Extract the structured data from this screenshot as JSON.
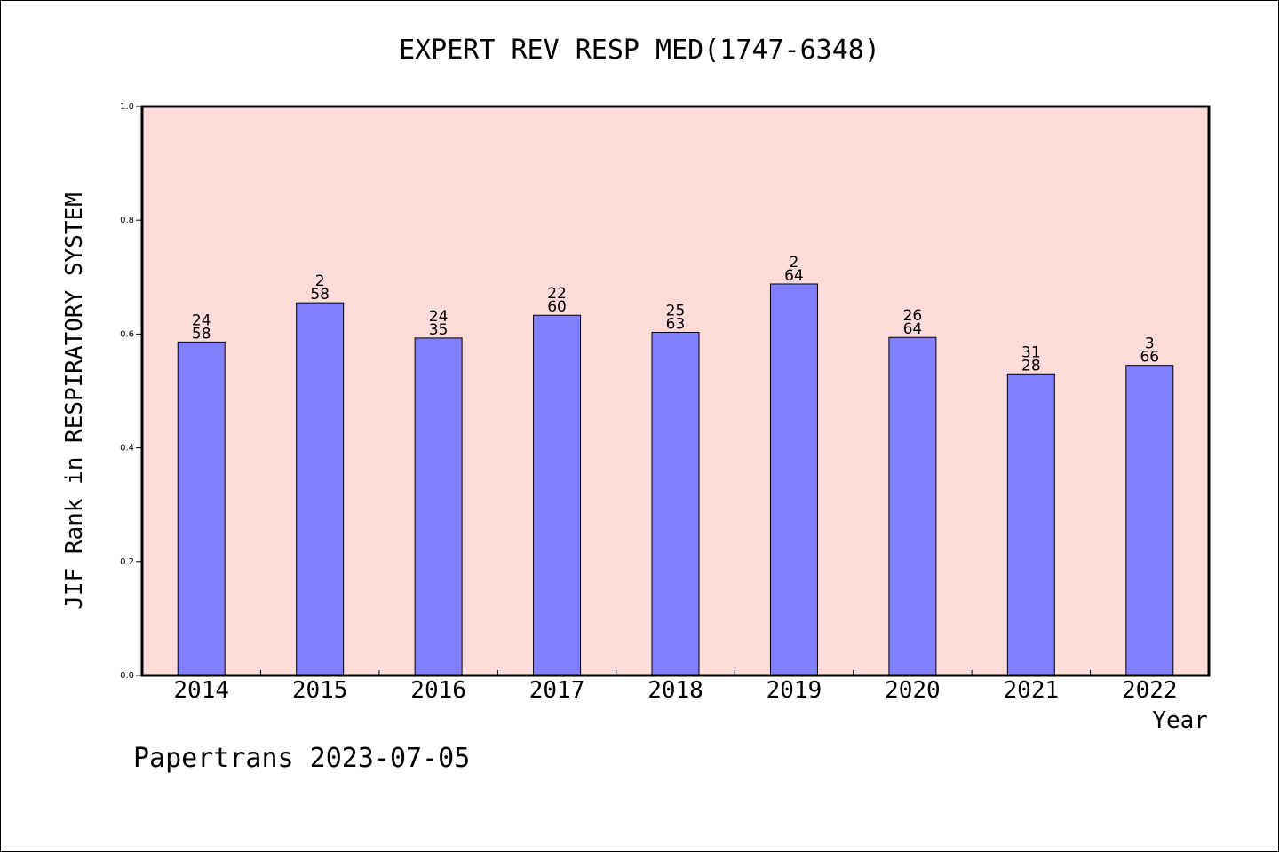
{
  "chart_data": {
    "type": "bar",
    "title": "EXPERT REV RESP MED(1747-6348)",
    "xlabel": "Year",
    "ylabel": "JIF Rank in RESPIRATORY SYSTEM",
    "ylim": [
      0,
      1.0
    ],
    "y_ticks": [
      "0.0",
      "0.2",
      "0.4",
      "0.6",
      "0.8",
      "1.0"
    ],
    "categories": [
      "2014",
      "2015",
      "2016",
      "2017",
      "2018",
      "2019",
      "2020",
      "2021",
      "2022"
    ],
    "values": [
      0.586,
      0.655,
      0.593,
      0.633,
      0.603,
      0.688,
      0.594,
      0.53,
      0.545
    ],
    "label_top": [
      "24",
      "2",
      "24",
      "22",
      "25",
      "2",
      "26",
      "31",
      "3"
    ],
    "label_bottom": [
      "58",
      "58",
      "35",
      "60",
      "63",
      "64",
      "64",
      "28",
      "66"
    ],
    "bar_color": "#8080ff",
    "plot_bg": "#ffdcd9",
    "grid": false
  },
  "footer": "Papertrans 2023-07-05"
}
